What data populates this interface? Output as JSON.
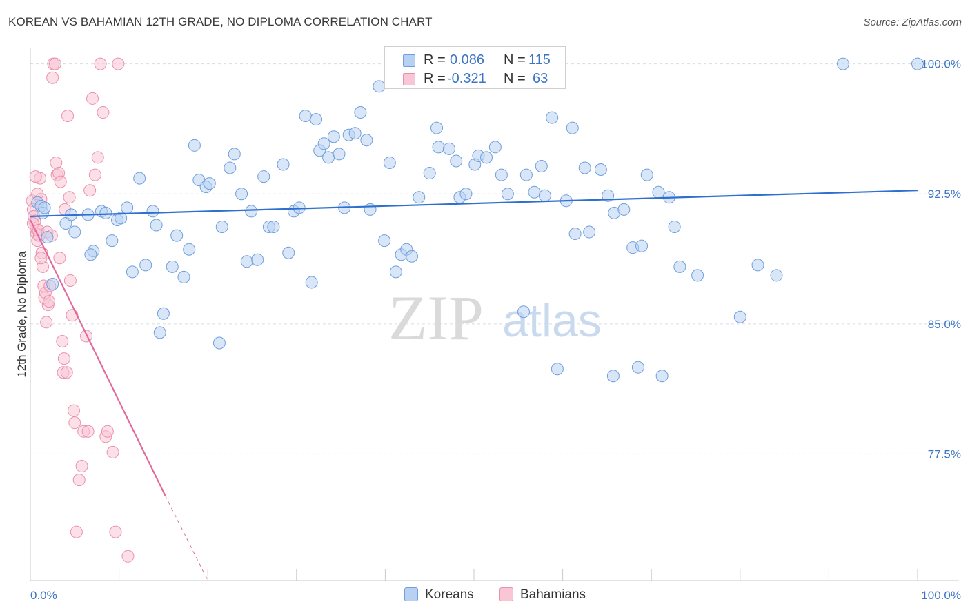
{
  "title": "KOREAN VS BAHAMIAN 12TH GRADE, NO DIPLOMA CORRELATION CHART",
  "source": "Source: ZipAtlas.com",
  "watermark": {
    "zip": "ZIP",
    "atlas": "atlas"
  },
  "legend_stats": {
    "r_label": "R =",
    "n_label": "N =",
    "koreans": {
      "r": "0.086",
      "n": "115"
    },
    "bahamians": {
      "r": "-0.321",
      "n": "63"
    }
  },
  "colors": {
    "blue_fill": "#b8d1f2",
    "blue_stroke": "#6f9fdc",
    "blue_line": "#2e6fcf",
    "pink_fill": "#f8c6d5",
    "pink_stroke": "#ec8fae",
    "pink_line": "#e2699a",
    "axis_text": "#3b74c4",
    "grid": "#d7dde6"
  },
  "chart_data": {
    "type": "scatter",
    "title": "KOREAN VS BAHAMIAN 12TH GRADE, NO DIPLOMA CORRELATION CHART",
    "xlabel": "",
    "ylabel": "12th Grade, No Diploma",
    "xlim": [
      0,
      100
    ],
    "ylim": [
      70.2,
      100.9
    ],
    "x_tick_labels": [
      "0.0%",
      "100.0%"
    ],
    "y_ticks": [
      77.5,
      85.0,
      92.5,
      100.0
    ],
    "y_tick_labels": [
      "77.5%",
      "85.0%",
      "92.5%",
      "100.0%"
    ],
    "grid": "horizontal dashed",
    "legend_position": "bottom-center",
    "series": [
      {
        "name": "Koreans",
        "trend": {
          "x": [
            0,
            100
          ],
          "y": [
            91.2,
            92.7
          ]
        },
        "points": [
          [
            0.8,
            92.0
          ],
          [
            1.2,
            91.8
          ],
          [
            1.4,
            91.4
          ],
          [
            1.6,
            91.7
          ],
          [
            1.9,
            90.0
          ],
          [
            2.5,
            87.3
          ],
          [
            4.0,
            90.8
          ],
          [
            4.6,
            91.3
          ],
          [
            5.0,
            90.3
          ],
          [
            6.5,
            91.3
          ],
          [
            7.1,
            89.2
          ],
          [
            6.8,
            89.0
          ],
          [
            8.0,
            91.5
          ],
          [
            8.5,
            91.4
          ],
          [
            9.2,
            89.8
          ],
          [
            9.8,
            91.0
          ],
          [
            10.2,
            91.1
          ],
          [
            10.9,
            91.7
          ],
          [
            11.5,
            88.0
          ],
          [
            12.3,
            93.4
          ],
          [
            13.0,
            88.4
          ],
          [
            13.8,
            91.5
          ],
          [
            14.2,
            90.7
          ],
          [
            14.6,
            84.5
          ],
          [
            15.0,
            85.6
          ],
          [
            16.0,
            88.3
          ],
          [
            16.5,
            90.1
          ],
          [
            17.3,
            87.7
          ],
          [
            17.9,
            89.3
          ],
          [
            18.5,
            95.3
          ],
          [
            19.0,
            93.3
          ],
          [
            19.8,
            92.9
          ],
          [
            20.2,
            93.1
          ],
          [
            21.3,
            83.9
          ],
          [
            21.6,
            90.6
          ],
          [
            22.5,
            94.0
          ],
          [
            23.0,
            94.8
          ],
          [
            23.8,
            92.5
          ],
          [
            24.4,
            88.6
          ],
          [
            24.9,
            91.5
          ],
          [
            25.6,
            88.7
          ],
          [
            26.3,
            93.5
          ],
          [
            26.9,
            90.6
          ],
          [
            27.4,
            90.6
          ],
          [
            28.5,
            94.2
          ],
          [
            29.1,
            89.1
          ],
          [
            29.7,
            91.5
          ],
          [
            30.3,
            91.7
          ],
          [
            31.0,
            97.0
          ],
          [
            31.7,
            87.4
          ],
          [
            32.2,
            96.8
          ],
          [
            32.6,
            95.0
          ],
          [
            33.1,
            95.4
          ],
          [
            33.6,
            94.6
          ],
          [
            34.2,
            95.8
          ],
          [
            34.8,
            94.8
          ],
          [
            35.4,
            91.7
          ],
          [
            35.9,
            95.9
          ],
          [
            36.6,
            96.0
          ],
          [
            37.2,
            97.2
          ],
          [
            37.9,
            95.6
          ],
          [
            38.3,
            91.6
          ],
          [
            39.3,
            98.7
          ],
          [
            39.9,
            89.8
          ],
          [
            40.5,
            94.3
          ],
          [
            41.2,
            88.0
          ],
          [
            41.8,
            89.0
          ],
          [
            42.4,
            89.3
          ],
          [
            43.0,
            88.9
          ],
          [
            43.8,
            92.3
          ],
          [
            45.0,
            93.7
          ],
          [
            45.8,
            96.3
          ],
          [
            46.0,
            95.2
          ],
          [
            47.2,
            95.1
          ],
          [
            48.0,
            94.4
          ],
          [
            48.4,
            92.3
          ],
          [
            49.1,
            92.5
          ],
          [
            50.1,
            94.2
          ],
          [
            50.5,
            94.7
          ],
          [
            51.4,
            94.6
          ],
          [
            52.4,
            95.2
          ],
          [
            53.1,
            93.6
          ],
          [
            53.8,
            92.5
          ],
          [
            55.6,
            85.7
          ],
          [
            55.9,
            93.6
          ],
          [
            56.8,
            92.6
          ],
          [
            57.6,
            94.1
          ],
          [
            58.0,
            92.4
          ],
          [
            58.8,
            96.9
          ],
          [
            59.4,
            82.4
          ],
          [
            60.4,
            92.1
          ],
          [
            61.1,
            96.3
          ],
          [
            61.4,
            90.2
          ],
          [
            62.5,
            94.0
          ],
          [
            63.0,
            90.3
          ],
          [
            64.3,
            93.9
          ],
          [
            65.1,
            92.4
          ],
          [
            65.7,
            82.0
          ],
          [
            65.8,
            91.4
          ],
          [
            66.9,
            91.6
          ],
          [
            67.9,
            89.4
          ],
          [
            68.5,
            82.5
          ],
          [
            68.9,
            89.5
          ],
          [
            69.5,
            93.6
          ],
          [
            70.8,
            92.6
          ],
          [
            71.2,
            82.0
          ],
          [
            72.0,
            92.3
          ],
          [
            72.6,
            90.6
          ],
          [
            73.2,
            88.3
          ],
          [
            75.2,
            87.8
          ],
          [
            80.0,
            85.4
          ],
          [
            82.0,
            88.4
          ],
          [
            84.1,
            87.8
          ],
          [
            91.6,
            100.0
          ],
          [
            100.0,
            100.0
          ]
        ]
      },
      {
        "name": "Bahamians",
        "trend": {
          "x": [
            0,
            15.2
          ],
          "y": [
            91.0,
            75.1
          ]
        },
        "trend_extension": {
          "x": [
            15.2,
            20.0
          ],
          "y": [
            75.1,
            70.2
          ]
        },
        "points": [
          [
            0.2,
            92.1
          ],
          [
            0.3,
            91.6
          ],
          [
            0.4,
            91.2
          ],
          [
            0.5,
            90.9
          ],
          [
            0.6,
            90.5
          ],
          [
            0.7,
            90.2
          ],
          [
            0.8,
            89.8
          ],
          [
            0.3,
            90.8
          ],
          [
            0.9,
            90.4
          ],
          [
            1.0,
            90.1
          ],
          [
            1.1,
            93.4
          ],
          [
            0.6,
            93.5
          ],
          [
            1.2,
            92.2
          ],
          [
            1.3,
            89.1
          ],
          [
            1.4,
            88.3
          ],
          [
            0.8,
            92.5
          ],
          [
            1.5,
            87.2
          ],
          [
            1.6,
            86.5
          ],
          [
            1.7,
            86.8
          ],
          [
            1.8,
            85.1
          ],
          [
            1.2,
            88.8
          ],
          [
            1.9,
            90.3
          ],
          [
            2.0,
            86.1
          ],
          [
            2.1,
            86.3
          ],
          [
            2.2,
            87.2
          ],
          [
            2.4,
            90.1
          ],
          [
            2.5,
            99.2
          ],
          [
            2.6,
            100.0
          ],
          [
            2.8,
            100.0
          ],
          [
            2.9,
            94.3
          ],
          [
            3.0,
            93.6
          ],
          [
            3.2,
            93.7
          ],
          [
            3.3,
            88.8
          ],
          [
            3.4,
            93.2
          ],
          [
            3.6,
            84.0
          ],
          [
            3.7,
            82.2
          ],
          [
            3.8,
            83.0
          ],
          [
            3.9,
            91.6
          ],
          [
            4.1,
            82.2
          ],
          [
            4.2,
            97.0
          ],
          [
            4.4,
            92.3
          ],
          [
            4.5,
            87.5
          ],
          [
            4.7,
            85.5
          ],
          [
            4.9,
            80.0
          ],
          [
            5.0,
            79.3
          ],
          [
            5.2,
            73.0
          ],
          [
            5.5,
            76.0
          ],
          [
            5.8,
            76.8
          ],
          [
            6.0,
            78.8
          ],
          [
            6.3,
            84.3
          ],
          [
            6.5,
            78.8
          ],
          [
            6.7,
            92.7
          ],
          [
            7.0,
            98.0
          ],
          [
            7.3,
            93.6
          ],
          [
            7.6,
            94.6
          ],
          [
            7.9,
            100.0
          ],
          [
            8.2,
            97.2
          ],
          [
            8.5,
            78.5
          ],
          [
            8.7,
            78.8
          ],
          [
            9.3,
            77.6
          ],
          [
            9.6,
            73.0
          ],
          [
            9.9,
            100.0
          ],
          [
            11.0,
            71.6
          ]
        ]
      }
    ]
  }
}
